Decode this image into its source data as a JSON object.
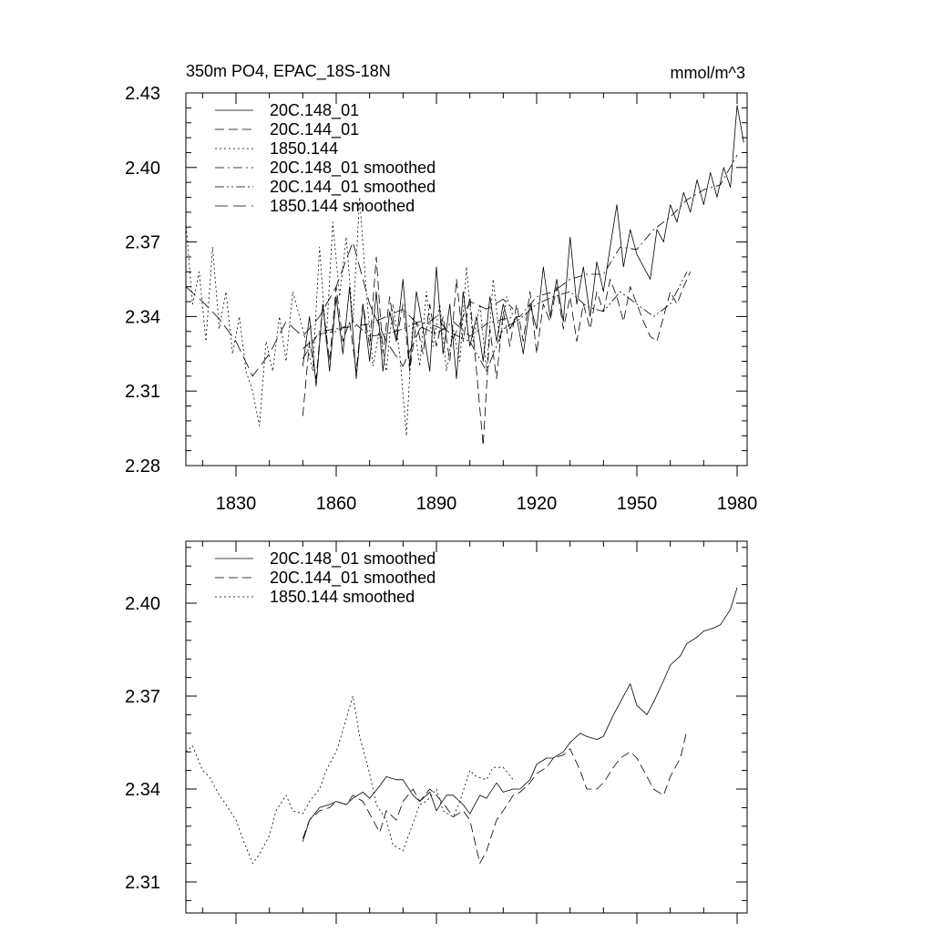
{
  "chart_data": [
    {
      "type": "line",
      "title": "350m PO4, EPAC_18S-18N",
      "units": "mmol/m^3",
      "xlabel": "",
      "ylabel": "",
      "xlim": [
        1815,
        1983
      ],
      "ylim": [
        2.28,
        2.43
      ],
      "yticks": [
        2.28,
        2.31,
        2.34,
        2.37,
        2.4,
        2.43
      ],
      "ytick_labels": [
        "2.28",
        "2.31",
        "2.34",
        "2.37",
        "2.40",
        "2.43"
      ],
      "xticks": [
        1830,
        1860,
        1890,
        1920,
        1950,
        1980
      ],
      "xtick_labels": [
        "1830",
        "1860",
        "1890",
        "1920",
        "1950",
        "1980"
      ],
      "legend_position": "top-left",
      "series": [
        {
          "name": "20C.148_01",
          "dash": "solid",
          "x": [
            1850,
            1852,
            1854,
            1856,
            1858,
            1860,
            1862,
            1864,
            1866,
            1868,
            1870,
            1872,
            1874,
            1876,
            1878,
            1880,
            1882,
            1884,
            1886,
            1888,
            1890,
            1892,
            1894,
            1896,
            1898,
            1900,
            1902,
            1904,
            1906,
            1908,
            1910,
            1912,
            1914,
            1916,
            1918,
            1920,
            1922,
            1924,
            1926,
            1928,
            1930,
            1932,
            1934,
            1936,
            1938,
            1940,
            1942,
            1944,
            1946,
            1948,
            1950,
            1952,
            1954,
            1956,
            1958,
            1960,
            1962,
            1964,
            1966,
            1968,
            1970,
            1972,
            1974,
            1976,
            1978,
            1980,
            1982
          ],
          "y": [
            2.32,
            2.34,
            2.312,
            2.345,
            2.318,
            2.348,
            2.325,
            2.352,
            2.315,
            2.345,
            2.322,
            2.35,
            2.318,
            2.342,
            2.33,
            2.355,
            2.32,
            2.35,
            2.335,
            2.318,
            2.36,
            2.325,
            2.345,
            2.315,
            2.35,
            2.328,
            2.34,
            2.322,
            2.348,
            2.33,
            2.345,
            2.335,
            2.34,
            2.325,
            2.345,
            2.335,
            2.36,
            2.34,
            2.355,
            2.338,
            2.372,
            2.345,
            2.36,
            2.34,
            2.362,
            2.35,
            2.368,
            2.385,
            2.36,
            2.375,
            2.365,
            2.36,
            2.355,
            2.375,
            2.37,
            2.385,
            2.378,
            2.39,
            2.382,
            2.395,
            2.385,
            2.398,
            2.388,
            2.4,
            2.392,
            2.425,
            2.41
          ]
        },
        {
          "name": "20C.144_01",
          "dash": "dash",
          "x": [
            1850,
            1852,
            1854,
            1856,
            1858,
            1860,
            1862,
            1864,
            1866,
            1868,
            1870,
            1872,
            1874,
            1876,
            1878,
            1880,
            1882,
            1884,
            1886,
            1888,
            1890,
            1892,
            1894,
            1896,
            1898,
            1900,
            1902,
            1904,
            1906,
            1908,
            1910,
            1912,
            1914,
            1916,
            1918,
            1920,
            1922,
            1924,
            1926,
            1928,
            1930,
            1932,
            1934,
            1936,
            1938,
            1940,
            1942,
            1944,
            1946,
            1948,
            1950,
            1952,
            1954,
            1956,
            1958,
            1960,
            1962,
            1964,
            1966
          ],
          "y": [
            2.3,
            2.33,
            2.315,
            2.345,
            2.322,
            2.352,
            2.33,
            2.338,
            2.318,
            2.345,
            2.328,
            2.364,
            2.325,
            2.348,
            2.33,
            2.345,
            2.318,
            2.338,
            2.325,
            2.345,
            2.328,
            2.34,
            2.322,
            2.355,
            2.33,
            2.348,
            2.318,
            2.288,
            2.335,
            2.315,
            2.342,
            2.328,
            2.345,
            2.33,
            2.35,
            2.325,
            2.345,
            2.338,
            2.352,
            2.335,
            2.348,
            2.33,
            2.345,
            2.335,
            2.35,
            2.342,
            2.355,
            2.348,
            2.338,
            2.352,
            2.345,
            2.338,
            2.332,
            2.33,
            2.34,
            2.35,
            2.345,
            2.352,
            2.358
          ]
        },
        {
          "name": "1850.144",
          "dash": "dot",
          "x": [
            1815,
            1817,
            1819,
            1821,
            1823,
            1825,
            1827,
            1829,
            1831,
            1833,
            1835,
            1837,
            1839,
            1841,
            1843,
            1845,
            1847,
            1849,
            1851,
            1853,
            1855,
            1857,
            1859,
            1861,
            1863,
            1865,
            1867,
            1869,
            1871,
            1873,
            1875,
            1877,
            1879,
            1881,
            1883,
            1885,
            1887,
            1889,
            1891,
            1893,
            1895,
            1897,
            1899,
            1901,
            1903,
            1905,
            1907,
            1909,
            1911,
            1913
          ],
          "y": [
            2.378,
            2.345,
            2.358,
            2.33,
            2.368,
            2.335,
            2.35,
            2.325,
            2.34,
            2.318,
            2.31,
            2.296,
            2.33,
            2.318,
            2.34,
            2.322,
            2.35,
            2.34,
            2.33,
            2.318,
            2.368,
            2.33,
            2.378,
            2.348,
            2.372,
            2.338,
            2.388,
            2.35,
            2.32,
            2.335,
            2.318,
            2.345,
            2.325,
            2.292,
            2.34,
            2.32,
            2.35,
            2.328,
            2.345,
            2.318,
            2.335,
            2.322,
            2.36,
            2.33,
            2.345,
            2.318,
            2.355,
            2.33,
            2.348,
            2.34
          ]
        },
        {
          "name": "20C.148_01 smoothed",
          "dash": "dashdot",
          "x": [
            1850,
            1855,
            1860,
            1865,
            1870,
            1875,
            1880,
            1885,
            1890,
            1895,
            1900,
            1905,
            1910,
            1915,
            1920,
            1925,
            1930,
            1935,
            1940,
            1945,
            1950,
            1955,
            1960,
            1965,
            1970,
            1975,
            1980
          ],
          "y": [
            2.323,
            2.334,
            2.335,
            2.336,
            2.337,
            2.34,
            2.343,
            2.336,
            2.333,
            2.338,
            2.332,
            2.337,
            2.339,
            2.34,
            2.348,
            2.35,
            2.355,
            2.357,
            2.357,
            2.368,
            2.367,
            2.375,
            2.38,
            2.387,
            2.391,
            2.393,
            2.405
          ]
        },
        {
          "name": "20C.144_01 smoothed",
          "dash": "dashdotdot",
          "x": [
            1850,
            1855,
            1860,
            1865,
            1870,
            1875,
            1880,
            1885,
            1890,
            1895,
            1900,
            1905,
            1910,
            1915,
            1920,
            1925,
            1930,
            1935,
            1940,
            1945,
            1950,
            1955,
            1960,
            1965
          ],
          "y": [
            2.327,
            2.333,
            2.334,
            2.338,
            2.332,
            2.333,
            2.335,
            2.338,
            2.336,
            2.333,
            2.33,
            2.318,
            2.335,
            2.339,
            2.345,
            2.348,
            2.35,
            2.344,
            2.342,
            2.35,
            2.345,
            2.34,
            2.345,
            2.358
          ]
        },
        {
          "name": "1850.144 smoothed",
          "dash": "longdash",
          "x": [
            1815,
            1820,
            1825,
            1830,
            1835,
            1840,
            1845,
            1850,
            1855,
            1860,
            1865,
            1870,
            1875,
            1880,
            1885,
            1890,
            1895,
            1900,
            1905,
            1910,
            1913
          ],
          "y": [
            2.352,
            2.346,
            2.339,
            2.33,
            2.316,
            2.325,
            2.338,
            2.332,
            2.34,
            2.352,
            2.37,
            2.345,
            2.33,
            2.32,
            2.335,
            2.34,
            2.331,
            2.346,
            2.343,
            2.347,
            2.343
          ]
        }
      ]
    },
    {
      "type": "line",
      "title": "",
      "xlabel": "",
      "ylabel": "",
      "xlim": [
        1815,
        1983
      ],
      "ylim": [
        2.3,
        2.42
      ],
      "yticks": [
        2.31,
        2.34,
        2.37,
        2.4
      ],
      "ytick_labels": [
        "2.31",
        "2.34",
        "2.37",
        "2.40"
      ],
      "xticks": [
        1830,
        1860,
        1890,
        1920,
        1950,
        1980
      ],
      "legend_position": "top-left",
      "series": [
        {
          "name": "20C.148_01 smoothed",
          "dash": "solid",
          "x": [
            1850,
            1852,
            1855,
            1858,
            1860,
            1863,
            1865,
            1868,
            1870,
            1873,
            1875,
            1878,
            1880,
            1883,
            1885,
            1888,
            1890,
            1893,
            1895,
            1898,
            1900,
            1903,
            1905,
            1908,
            1910,
            1913,
            1915,
            1918,
            1920,
            1923,
            1925,
            1928,
            1930,
            1933,
            1935,
            1938,
            1940,
            1943,
            1945,
            1948,
            1950,
            1953,
            1955,
            1958,
            1960,
            1963,
            1965,
            1968,
            1970,
            1973,
            1975,
            1978,
            1980
          ],
          "y": [
            2.323,
            2.33,
            2.334,
            2.335,
            2.336,
            2.335,
            2.337,
            2.339,
            2.337,
            2.341,
            2.344,
            2.343,
            2.343,
            2.338,
            2.336,
            2.339,
            2.333,
            2.338,
            2.338,
            2.335,
            2.332,
            2.338,
            2.337,
            2.342,
            2.339,
            2.34,
            2.34,
            2.343,
            2.348,
            2.35,
            2.35,
            2.352,
            2.355,
            2.358,
            2.357,
            2.356,
            2.357,
            2.364,
            2.368,
            2.374,
            2.367,
            2.364,
            2.368,
            2.375,
            2.38,
            2.383,
            2.387,
            2.389,
            2.391,
            2.392,
            2.393,
            2.398,
            2.405
          ]
        },
        {
          "name": "20C.144_01 smoothed",
          "dash": "dash",
          "x": [
            1850,
            1852,
            1855,
            1858,
            1860,
            1863,
            1865,
            1868,
            1870,
            1873,
            1875,
            1878,
            1880,
            1883,
            1885,
            1888,
            1890,
            1893,
            1895,
            1898,
            1900,
            1903,
            1905,
            1908,
            1910,
            1913,
            1915,
            1918,
            1920,
            1923,
            1925,
            1928,
            1930,
            1933,
            1935,
            1938,
            1940,
            1943,
            1945,
            1948,
            1950,
            1953,
            1955,
            1958,
            1960,
            1963,
            1965
          ],
          "y": [
            2.324,
            2.33,
            2.333,
            2.334,
            2.336,
            2.335,
            2.338,
            2.336,
            2.332,
            2.326,
            2.333,
            2.33,
            2.336,
            2.34,
            2.336,
            2.34,
            2.338,
            2.334,
            2.331,
            2.333,
            2.33,
            2.316,
            2.32,
            2.33,
            2.333,
            2.338,
            2.339,
            2.342,
            2.345,
            2.347,
            2.35,
            2.351,
            2.353,
            2.346,
            2.34,
            2.34,
            2.342,
            2.347,
            2.35,
            2.352,
            2.35,
            2.344,
            2.34,
            2.338,
            2.344,
            2.35,
            2.359
          ]
        },
        {
          "name": "1850.144 smoothed",
          "dash": "dot",
          "x": [
            1815,
            1817,
            1820,
            1822,
            1825,
            1827,
            1830,
            1832,
            1835,
            1837,
            1840,
            1842,
            1845,
            1847,
            1850,
            1852,
            1855,
            1857,
            1860,
            1862,
            1865,
            1867,
            1870,
            1872,
            1875,
            1877,
            1880,
            1882,
            1885,
            1887,
            1890,
            1892,
            1895,
            1897,
            1900,
            1902,
            1905,
            1907,
            1910,
            1913
          ],
          "y": [
            2.352,
            2.354,
            2.346,
            2.344,
            2.338,
            2.335,
            2.33,
            2.324,
            2.316,
            2.319,
            2.325,
            2.333,
            2.338,
            2.333,
            2.332,
            2.336,
            2.34,
            2.346,
            2.352,
            2.359,
            2.37,
            2.357,
            2.345,
            2.335,
            2.33,
            2.322,
            2.32,
            2.326,
            2.335,
            2.336,
            2.34,
            2.333,
            2.331,
            2.336,
            2.346,
            2.344,
            2.343,
            2.347,
            2.347,
            2.343
          ]
        }
      ]
    }
  ]
}
